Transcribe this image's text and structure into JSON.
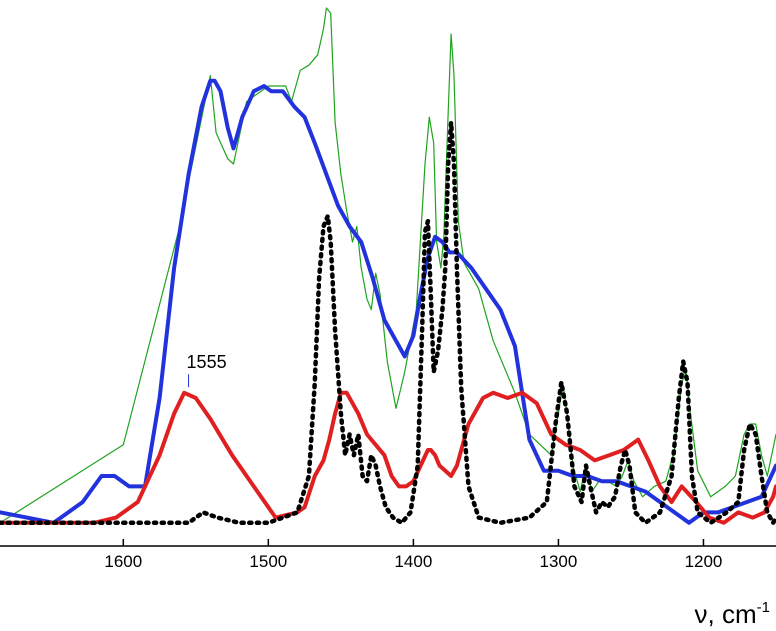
{
  "chart_data": {
    "type": "line",
    "title": "",
    "xlabel": "ν, cm",
    "xlabel_superscript": "-1",
    "ylabel": "",
    "x_reversed": true,
    "xlim": [
      1685,
      1150
    ],
    "ylim": [
      0,
      100
    ],
    "x_ticks": [
      1600,
      1500,
      1400,
      1300,
      1200
    ],
    "grid": false,
    "legend": "none",
    "annotations": [
      {
        "text": "1555",
        "x": 1555,
        "y": 26.5
      }
    ],
    "series": [
      {
        "name": "green",
        "color": "#1fa31f",
        "width": 1.2,
        "dash": "",
        "x": [
          1685,
          1600,
          1562,
          1540,
          1536,
          1528,
          1524,
          1515,
          1500,
          1488,
          1484,
          1478,
          1472,
          1466,
          1462,
          1460,
          1457,
          1454,
          1450,
          1446,
          1442,
          1439,
          1436,
          1432,
          1429,
          1426,
          1423,
          1418,
          1412,
          1406,
          1398,
          1392,
          1389,
          1386,
          1384,
          1381,
          1379,
          1376,
          1374,
          1372,
          1369,
          1365,
          1355,
          1345,
          1330,
          1320,
          1305,
          1300,
          1297,
          1294,
          1290,
          1285,
          1281,
          1277,
          1272,
          1266,
          1260,
          1256,
          1252,
          1248,
          1242,
          1234,
          1226,
          1220,
          1215,
          1212,
          1209,
          1204,
          1195,
          1185,
          1178,
          1172,
          1168,
          1164,
          1160,
          1156,
          1150
        ],
        "y": [
          1,
          16,
          57,
          87,
          76,
          71,
          70,
          82,
          85,
          85,
          82,
          88,
          89,
          91,
          96,
          100,
          99,
          78,
          68,
          61,
          55,
          58,
          50,
          44,
          42,
          49,
          45,
          32,
          23,
          30,
          42,
          70,
          79,
          74,
          55,
          50,
          56,
          80,
          95,
          87,
          59,
          51,
          46,
          36,
          26,
          18,
          14,
          22,
          28,
          22,
          12,
          7,
          12,
          7,
          9,
          9,
          8,
          10,
          13,
          9,
          6,
          8,
          9,
          15,
          28,
          30,
          22,
          11,
          6,
          8,
          10,
          18,
          20,
          20,
          14,
          10,
          18
        ]
      },
      {
        "name": "blue",
        "color": "#2233dd",
        "width": 4,
        "dash": "",
        "x": [
          1685,
          1648,
          1628,
          1615,
          1606,
          1596,
          1585,
          1575,
          1565,
          1555,
          1546,
          1540,
          1537,
          1533,
          1528,
          1524,
          1518,
          1510,
          1503,
          1498,
          1490,
          1482,
          1475,
          1468,
          1460,
          1452,
          1444,
          1436,
          1428,
          1420,
          1412,
          1406,
          1400,
          1395,
          1390,
          1385,
          1380,
          1375,
          1370,
          1360,
          1350,
          1340,
          1330,
          1320,
          1310,
          1300,
          1290,
          1280,
          1270,
          1260,
          1250,
          1240,
          1230,
          1220,
          1210,
          1200,
          1190,
          1180,
          1170,
          1160,
          1150
        ],
        "y": [
          3,
          1,
          5,
          10,
          10,
          8,
          8,
          25,
          50,
          68,
          81,
          86,
          86,
          84,
          77,
          73,
          79,
          84,
          85,
          84,
          84,
          81,
          79,
          74,
          68,
          62,
          58,
          55,
          48,
          40,
          36,
          33,
          37,
          45,
          52,
          56,
          55,
          53,
          53,
          50,
          46,
          42,
          35,
          17,
          11,
          11,
          10,
          10,
          9,
          9,
          8,
          7,
          5,
          3,
          1,
          3,
          3,
          4,
          5,
          6,
          12
        ]
      },
      {
        "name": "red",
        "color": "#e02020",
        "width": 4,
        "dash": "",
        "x": [
          1685,
          1650,
          1620,
          1605,
          1590,
          1575,
          1565,
          1558,
          1550,
          1540,
          1525,
          1510,
          1495,
          1480,
          1475,
          1468,
          1462,
          1458,
          1454,
          1450,
          1446,
          1442,
          1438,
          1432,
          1426,
          1420,
          1415,
          1410,
          1405,
          1400,
          1395,
          1390,
          1388,
          1385,
          1382,
          1378,
          1374,
          1370,
          1362,
          1352,
          1345,
          1335,
          1325,
          1315,
          1305,
          1295,
          1285,
          1275,
          1265,
          1255,
          1245,
          1238,
          1230,
          1222,
          1215,
          1205,
          1196,
          1186,
          1176,
          1166,
          1158,
          1152,
          1150
        ],
        "y": [
          1,
          1,
          1,
          2,
          5,
          14,
          22,
          26,
          25,
          21,
          14,
          8,
          2,
          3,
          4,
          10,
          13,
          17,
          22,
          26,
          26,
          24,
          22,
          18,
          16,
          14,
          10,
          8,
          8,
          9,
          12,
          15,
          15,
          14,
          12,
          11,
          10,
          12,
          20,
          25,
          26,
          25,
          26,
          24,
          18,
          16,
          15,
          13,
          14,
          15,
          17,
          13,
          8,
          5,
          8,
          5,
          2,
          1,
          3,
          2,
          3,
          6,
          8
        ]
      },
      {
        "name": "black-dotted",
        "color": "#000000",
        "width": 4.5,
        "dash": "2.2 5.5",
        "x": [
          1685,
          1640,
          1605,
          1570,
          1555,
          1545,
          1535,
          1520,
          1500,
          1480,
          1472,
          1468,
          1465,
          1462,
          1459,
          1457,
          1454,
          1450,
          1447,
          1444,
          1441,
          1438,
          1435,
          1432,
          1429,
          1426,
          1423,
          1419,
          1414,
          1408,
          1402,
          1397,
          1394,
          1392,
          1390,
          1388,
          1386,
          1383,
          1380,
          1378,
          1376,
          1374,
          1372,
          1370,
          1367,
          1362,
          1355,
          1340,
          1320,
          1308,
          1302,
          1298,
          1294,
          1289,
          1284,
          1281,
          1278,
          1274,
          1270,
          1266,
          1261,
          1257,
          1254,
          1251,
          1247,
          1240,
          1230,
          1222,
          1217,
          1214,
          1211,
          1208,
          1204,
          1195,
          1184,
          1176,
          1172,
          1168,
          1164,
          1160,
          1156,
          1152,
          1150
        ],
        "y": [
          1,
          1,
          1,
          1,
          1,
          3,
          2,
          1,
          1,
          3,
          10,
          28,
          48,
          58,
          60,
          55,
          38,
          22,
          14,
          18,
          14,
          18,
          10,
          9,
          14,
          12,
          8,
          4,
          2,
          1,
          3,
          12,
          38,
          57,
          59,
          45,
          30,
          34,
          42,
          50,
          70,
          78,
          70,
          50,
          27,
          8,
          2,
          1,
          2,
          5,
          20,
          28,
          22,
          8,
          5,
          12,
          8,
          3,
          5,
          4,
          6,
          12,
          15,
          12,
          3,
          1,
          3,
          10,
          25,
          32,
          28,
          10,
          3,
          1,
          3,
          5,
          15,
          20,
          18,
          10,
          3,
          1,
          2
        ]
      }
    ]
  }
}
